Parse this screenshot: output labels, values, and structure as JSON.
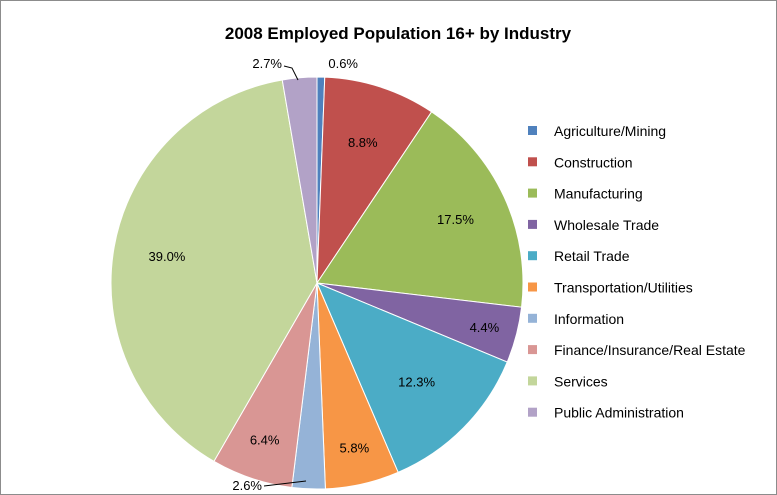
{
  "chart_data": {
    "type": "pie",
    "title": "2008 Employed Population 16+ by Industry",
    "legend_position": "right",
    "slices": [
      {
        "label": "Agriculture/Mining",
        "value": 0.6,
        "display": "0.6%",
        "color": "#4F81BD"
      },
      {
        "label": "Construction",
        "value": 8.8,
        "display": "8.8%",
        "color": "#C0504D"
      },
      {
        "label": "Manufacturing",
        "value": 17.5,
        "display": "17.5%",
        "color": "#9BBB59"
      },
      {
        "label": "Wholesale Trade",
        "value": 4.4,
        "display": "4.4%",
        "color": "#8064A2"
      },
      {
        "label": "Retail Trade",
        "value": 12.3,
        "display": "12.3%",
        "color": "#4BACC6"
      },
      {
        "label": "Transportation/Utilities",
        "value": 5.8,
        "display": "5.8%",
        "color": "#F79646"
      },
      {
        "label": "Information",
        "value": 2.6,
        "display": "2.6%",
        "color": "#95B3D7"
      },
      {
        "label": "Finance/Insurance/Real Estate",
        "value": 6.4,
        "display": "6.4%",
        "color": "#D99694"
      },
      {
        "label": "Services",
        "value": 39.0,
        "display": "39.0%",
        "color": "#C3D69B"
      },
      {
        "label": "Public Administration",
        "value": 2.7,
        "display": "2.7%",
        "color": "#B2A2C7"
      }
    ]
  }
}
